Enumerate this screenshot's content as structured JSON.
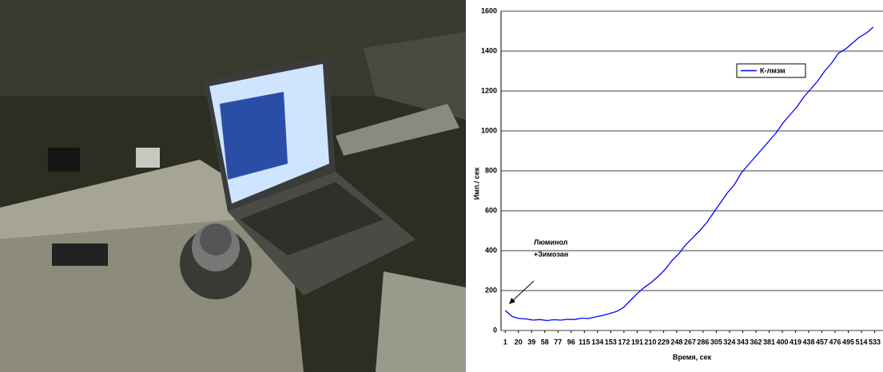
{
  "chart_data": {
    "type": "line",
    "x_label": "Время, сек",
    "y_label": "Имп./ сек",
    "annotation": [
      "Люминол",
      "+Зимозан"
    ],
    "x": [
      1,
      11,
      21,
      31,
      41,
      51,
      61,
      71,
      81,
      91,
      101,
      111,
      121,
      131,
      141,
      151,
      161,
      171,
      181,
      191,
      201,
      211,
      221,
      231,
      241,
      251,
      261,
      271,
      281,
      291,
      301,
      311,
      321,
      331,
      341,
      351,
      361,
      371,
      381,
      391,
      401,
      411,
      421,
      431,
      441,
      451,
      461,
      471,
      481,
      491,
      501,
      511,
      521,
      531
    ],
    "series": [
      {
        "name": "К-лмзм",
        "color": "#0000ff",
        "values": [
          100,
          70,
          60,
          58,
          52,
          55,
          50,
          54,
          52,
          56,
          55,
          62,
          60,
          68,
          75,
          85,
          95,
          115,
          150,
          185,
          215,
          240,
          270,
          305,
          350,
          385,
          430,
          465,
          500,
          540,
          590,
          640,
          690,
          730,
          790,
          830,
          870,
          910,
          950,
          990,
          1040,
          1080,
          1120,
          1170,
          1210,
          1250,
          1300,
          1340,
          1390,
          1410,
          1440,
          1470,
          1490,
          1520
        ]
      }
    ],
    "xlim": [
      -5,
      545
    ],
    "xticks": [
      1,
      20,
      39,
      58,
      77,
      96,
      115,
      134,
      153,
      172,
      191,
      210,
      229,
      248,
      267,
      286,
      305,
      324,
      343,
      362,
      381,
      400,
      419,
      438,
      457,
      476,
      495,
      514,
      533
    ],
    "ylim": [
      0,
      1600
    ],
    "yticks": [
      0,
      200,
      400,
      600,
      800,
      1000,
      1200,
      1400,
      1600
    ],
    "grid": true,
    "legend": "upper-right"
  }
}
